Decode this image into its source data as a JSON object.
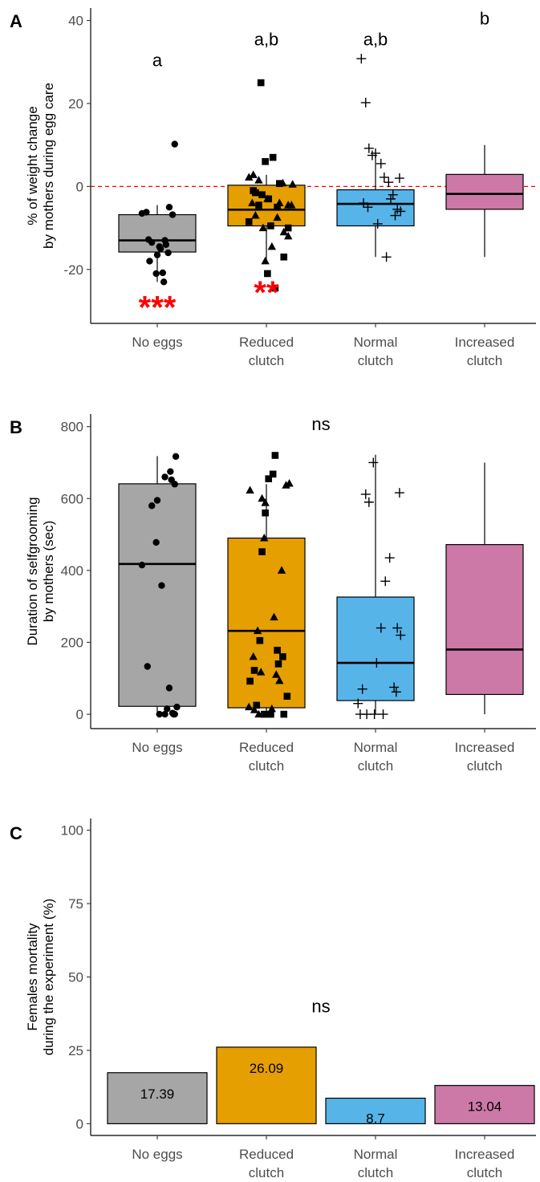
{
  "colors": {
    "No eggs": "#a6a6a6",
    "Reduced clutch": "#e69f00",
    "Normal clutch": "#56b4e9",
    "Increased clutch": "#cc79a7"
  },
  "chart_data": [
    {
      "panel": "A",
      "type": "box",
      "ylabel": [
        "% of weight change",
        "by mothers during egg care"
      ],
      "ylim": [
        -33,
        43
      ],
      "yticks": [
        -20,
        0,
        20,
        40
      ],
      "ytick_labels": [
        "-20",
        "0",
        "20",
        "40"
      ],
      "reference_line_y": 0,
      "categories": [
        [
          "No eggs"
        ],
        [
          "Reduced",
          "clutch"
        ],
        [
          "Normal",
          "clutch"
        ],
        [
          "Increased",
          "clutch"
        ]
      ],
      "markers": [
        "circle",
        "triangle",
        "square",
        "plus"
      ],
      "boxes": [
        {
          "q1": -15.8,
          "median": -13,
          "q3": -6.8,
          "whisker_low": -23,
          "whisker_high": -4.5
        },
        {
          "q1": -9.5,
          "median": -5.6,
          "q3": 0.3,
          "whisker_low": -18,
          "whisker_high": 2.8
        },
        {
          "q1": -9.5,
          "median": -4.2,
          "q3": -0.8,
          "whisker_low": -17,
          "whisker_high": 7.5
        },
        {
          "q1": -5.5,
          "median": -1.8,
          "q3": 2.9,
          "whisker_low": -17,
          "whisker_high": 10
        }
      ],
      "points": [
        {
          "x": [
            0.86,
            0.9,
            0.95,
            1.02,
            1.07,
            1.11,
            1.16,
            0.93,
            0.99,
            1.05,
            1.1,
            1.0,
            0.92,
            1.08,
            1.03,
            1.14,
            1.06
          ],
          "y": [
            -6.5,
            -6.2,
            -13.5,
            -14.5,
            -13,
            -5,
            10.2,
            -18,
            -21,
            -20.8,
            -16,
            -16.5,
            -12.8,
            -14,
            -15,
            -6.8,
            -23
          ]
        },
        {
          "x": [
            1.84,
            1.88,
            1.93,
            2.01,
            2.1,
            2.15,
            2.2,
            2.23,
            1.9,
            1.97,
            2.05,
            2.16,
            2.2,
            1.99,
            2.12,
            1.87,
            2.24
          ],
          "y": [
            2.2,
            2.8,
            1.5,
            -3,
            -7.5,
            0.8,
            -4.5,
            -4.5,
            -7,
            -10,
            -14.5,
            -11,
            -12,
            -18,
            -4,
            -4,
            0.5
          ]
        },
        {
          "x": [
            1.84,
            1.88,
            1.93,
            1.95,
            1.99,
            2.06,
            2.1,
            2.12,
            2.16,
            2.2,
            1.96,
            2.01,
            2.08,
            1.9,
            2.04,
            2.02
          ],
          "y": [
            -8.5,
            -1,
            -4.5,
            25,
            6,
            7,
            -5,
            0.7,
            -17,
            -10,
            -2,
            -21,
            -24.5,
            -1.5,
            -9.5,
            -3
          ]
        },
        {
          "x": [
            2.87,
            2.91,
            2.94,
            2.97,
            3.0,
            3.05,
            3.08,
            3.12,
            3.16,
            3.2,
            3.23,
            2.89,
            2.93,
            3.02,
            3.1,
            3.14,
            3.18,
            3.22
          ],
          "y": [
            30.8,
            20.2,
            9.2,
            7.5,
            8,
            5.5,
            2.2,
            1,
            -2,
            -5.5,
            -6,
            -4,
            -5,
            -9,
            -17,
            -3,
            -7,
            2
          ]
        }
      ],
      "letters": [
        "a",
        "a,b",
        "a,b",
        "b"
      ],
      "letter_y": [
        29,
        34,
        34,
        39
      ],
      "stars": [
        "***",
        "**",
        "",
        ""
      ],
      "stars_y": [
        -29,
        -25.5,
        0,
        0
      ]
    },
    {
      "panel": "B",
      "type": "box",
      "ylabel": [
        "Duration of selfgrooming",
        "by mothers (sec)"
      ],
      "ylim": [
        -40,
        835
      ],
      "yticks": [
        0,
        200,
        400,
        600,
        800
      ],
      "ytick_labels": [
        "0",
        "200",
        "400",
        "600",
        "800"
      ],
      "categories": [
        [
          "No eggs"
        ],
        [
          "Reduced",
          "clutch"
        ],
        [
          "Normal",
          "clutch"
        ],
        [
          "Increased",
          "clutch"
        ]
      ],
      "markers": [
        "circle",
        "triangle",
        "square",
        "plus"
      ],
      "boxes": [
        {
          "q1": 22,
          "median": 418,
          "q3": 641,
          "whisker_low": 0,
          "whisker_high": 718
        },
        {
          "q1": 18,
          "median": 232,
          "q3": 490,
          "whisker_low": 0,
          "whisker_high": 640
        },
        {
          "q1": 38,
          "median": 143,
          "q3": 326,
          "whisker_low": 0,
          "whisker_high": 722
        },
        {
          "q1": 55,
          "median": 180,
          "q3": 472,
          "whisker_low": 0,
          "whisker_high": 700
        }
      ],
      "points": [
        {
          "x": [
            0.86,
            0.95,
            1.0,
            1.07,
            1.12,
            1.16,
            1.13,
            0.99,
            1.04,
            0.91,
            1.11,
            1.09,
            1.14,
            1.16,
            1.18,
            1.02,
            1.15,
            1.17,
            1.07
          ],
          "y": [
            415,
            580,
            595,
            660,
            675,
            640,
            652,
            478,
            358,
            133,
            73,
            15,
            3,
            0,
            20,
            0,
            0,
            717,
            0
          ]
        },
        {
          "x": [
            1.84,
            1.88,
            1.92,
            1.96,
            1.99,
            2.07,
            2.09,
            2.12,
            2.14,
            2.18,
            2.21,
            1.89,
            1.93,
            2.0,
            2.05,
            1.85,
            1.95,
            1.98
          ],
          "y": [
            20,
            160,
            232,
            600,
            588,
            270,
            110,
            93,
            400,
            637,
            642,
            12,
            0,
            0,
            15,
            623,
            117,
            490
          ]
        },
        {
          "x": [
            1.85,
            1.89,
            1.94,
            1.96,
            1.99,
            2.02,
            2.06,
            2.08,
            2.11,
            2.15,
            2.19,
            1.91,
            1.98,
            2.04,
            2.16,
            2.1
          ],
          "y": [
            92,
            122,
            205,
            452,
            560,
            655,
            668,
            720,
            140,
            160,
            50,
            25,
            0,
            0,
            0,
            178
          ]
        },
        {
          "x": [
            2.84,
            2.88,
            2.91,
            2.94,
            2.98,
            3.01,
            3.05,
            3.09,
            3.13,
            3.17,
            3.2,
            3.23,
            2.86,
            2.92,
            2.99,
            3.07,
            3.19,
            3.22
          ],
          "y": [
            30,
            70,
            612,
            590,
            700,
            143,
            240,
            370,
            435,
            75,
            240,
            220,
            0,
            0,
            0,
            0,
            62,
            616
          ]
        }
      ],
      "letters": [
        "ns"
      ],
      "letter_pos": [
        2.5,
        790
      ]
    },
    {
      "panel": "C",
      "type": "bar",
      "ylabel": [
        "Females mortality",
        "during the experiment (%)"
      ],
      "ylim": [
        -4,
        104
      ],
      "yticks": [
        0,
        25,
        50,
        75,
        100
      ],
      "ytick_labels": [
        "0",
        "25",
        "50",
        "75",
        "100"
      ],
      "categories": [
        [
          "No eggs"
        ],
        [
          "Reduced",
          "clutch"
        ],
        [
          "Normal",
          "clutch"
        ],
        [
          "Increased",
          "clutch"
        ]
      ],
      "values": [
        17.39,
        26.09,
        8.7,
        13.04
      ],
      "value_labels": [
        "17.39",
        "26.09",
        "8.7",
        "13.04"
      ],
      "letters": [
        "ns"
      ],
      "letter_pos": [
        2.5,
        38
      ]
    }
  ],
  "panel_letters": [
    "A",
    "B",
    "C"
  ]
}
